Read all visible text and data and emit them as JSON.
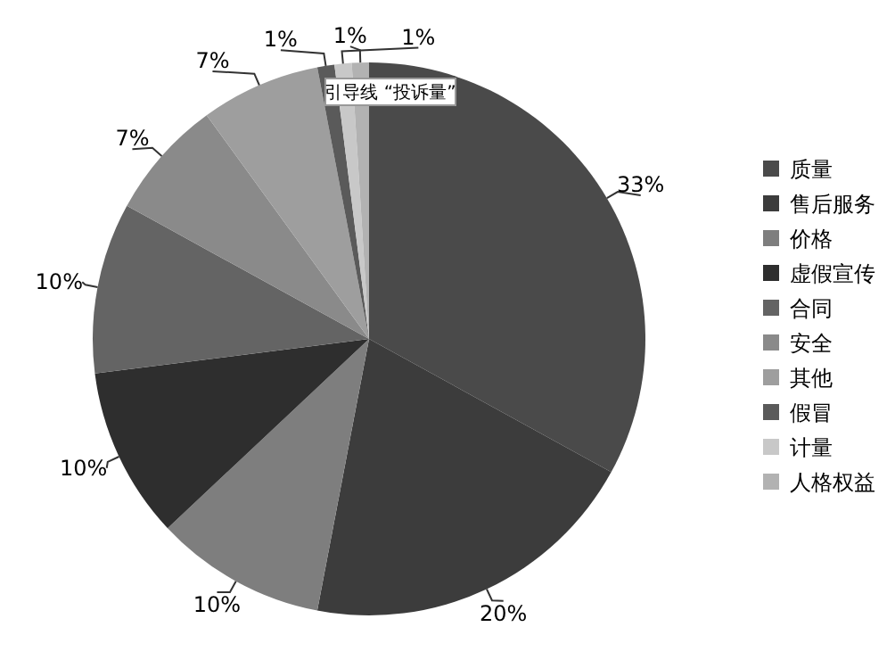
{
  "chart_data": {
    "type": "pie",
    "categories": [
      "质量",
      "售后服务",
      "价格",
      "虚假宣传",
      "合同",
      "安全",
      "其他",
      "假冒",
      "计量",
      "人格权益"
    ],
    "values": [
      33,
      20,
      10,
      10,
      10,
      7,
      7,
      1,
      1,
      1
    ],
    "value_labels": [
      "33%",
      "20%",
      "10%",
      "10%",
      "10%",
      "7%",
      "7%",
      "1%",
      "1%",
      "1%"
    ],
    "colors": [
      "#4a4a4a",
      "#3c3c3c",
      "#7e7e7e",
      "#2e2e2e",
      "#646464",
      "#8a8a8a",
      "#9e9e9e",
      "#5a5a5a",
      "#c8c8c8",
      "#b2b2b2"
    ],
    "legend": "right",
    "annotations": [
      "引导线 “投诉量”"
    ]
  }
}
